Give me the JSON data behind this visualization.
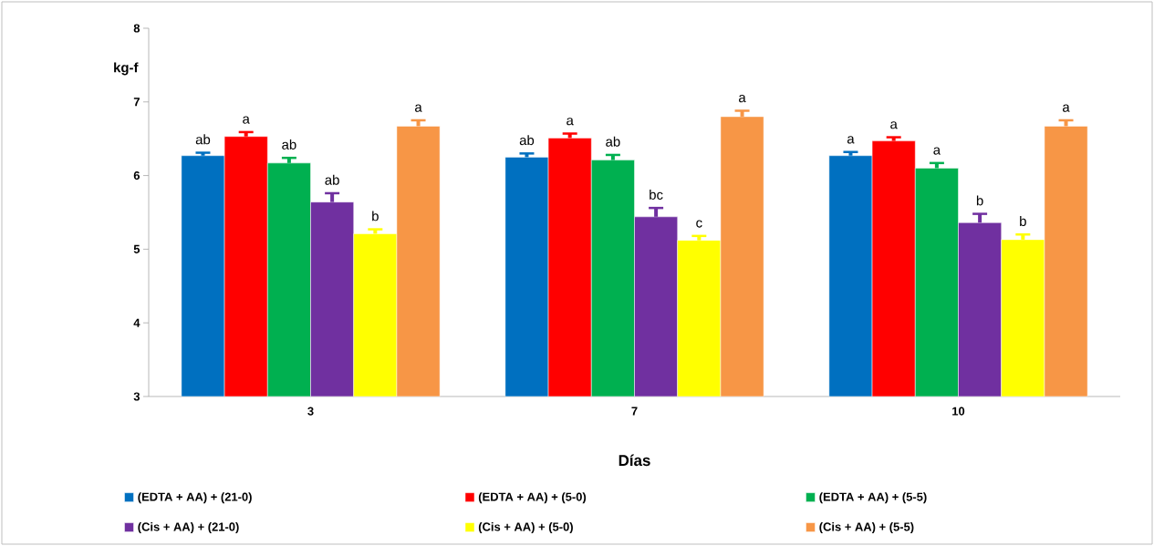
{
  "chart_data": {
    "type": "bar",
    "xlabel": "Días",
    "ylabel": "kg-f",
    "categories": [
      "3",
      "7",
      "10"
    ],
    "ylim": [
      3,
      8
    ],
    "yticks": [
      3,
      4,
      5,
      6,
      7,
      8
    ],
    "grid": false,
    "legend": "bottom",
    "series": [
      {
        "name": "(EDTA + AA) + (21-0)",
        "color": "#0070c0",
        "values": [
          6.27,
          6.25,
          6.27
        ],
        "errors": [
          0.04,
          0.05,
          0.05
        ],
        "value_labels": [
          "ab",
          "ab",
          "a"
        ]
      },
      {
        "name": "(EDTA + AA) + (5-0)",
        "color": "#ff0000",
        "values": [
          6.53,
          6.51,
          6.47
        ],
        "errors": [
          0.06,
          0.06,
          0.05
        ],
        "value_labels": [
          "a",
          "a",
          "a"
        ]
      },
      {
        "name": "(EDTA + AA) + (5-5)",
        "color": "#00b050",
        "values": [
          6.17,
          6.21,
          6.1
        ],
        "errors": [
          0.07,
          0.07,
          0.07
        ],
        "value_labels": [
          "ab",
          "ab",
          "a"
        ]
      },
      {
        "name": "(Cis + AA) + (21-0)",
        "color": "#7030a0",
        "values": [
          5.64,
          5.44,
          5.36
        ],
        "errors": [
          0.12,
          0.12,
          0.12
        ],
        "value_labels": [
          "ab",
          "bc",
          "b"
        ]
      },
      {
        "name": "(Cis + AA) + (5-0)",
        "color": "#ffff00",
        "values": [
          5.21,
          5.12,
          5.13
        ],
        "errors": [
          0.06,
          0.06,
          0.07
        ],
        "value_labels": [
          "b",
          "c",
          "b"
        ]
      },
      {
        "name": "(Cis + AA) + (5-5)",
        "color": "#f79646",
        "values": [
          6.67,
          6.8,
          6.67
        ],
        "errors": [
          0.08,
          0.08,
          0.08
        ],
        "value_labels": [
          "a",
          "a",
          "a"
        ]
      }
    ]
  }
}
